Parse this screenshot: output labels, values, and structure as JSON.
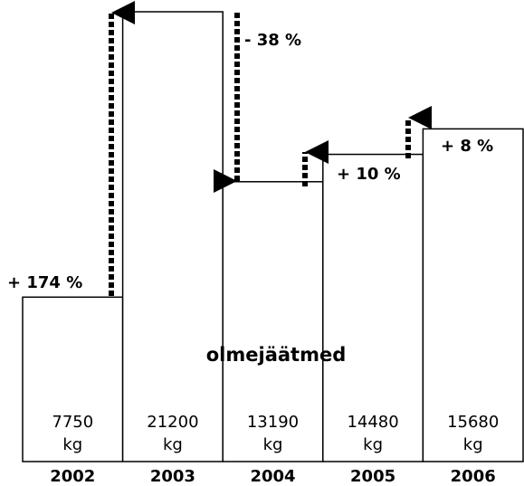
{
  "chart_data": {
    "type": "bar",
    "categories": [
      "2002",
      "2003",
      "2004",
      "2005",
      "2006"
    ],
    "values": [
      7750,
      21200,
      13190,
      14480,
      15680
    ],
    "value_labels": [
      "7750 kg",
      "21200 kg",
      "13190 kg",
      "14480 kg",
      "15680 kg"
    ],
    "color": "#ffffff",
    "label": "olmejäätmed",
    "annotations": [
      "+ 174 %",
      "- 38 %",
      "+ 10 %",
      "+ 8 %"
    ]
  }
}
